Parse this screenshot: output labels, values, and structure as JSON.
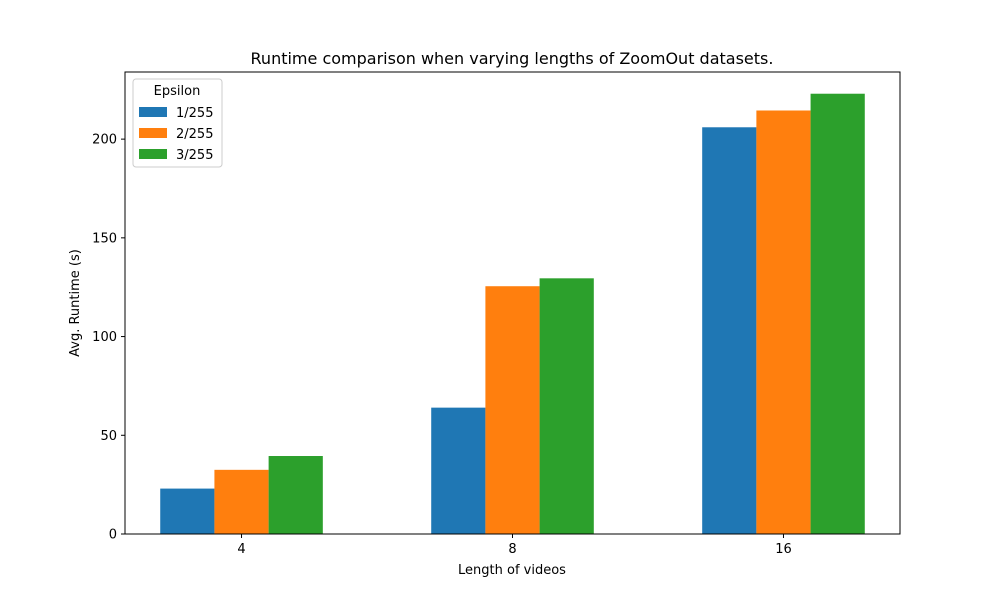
{
  "chart_data": {
    "type": "bar",
    "title": "Runtime comparison when varying lengths of ZoomOut datasets.",
    "xlabel": "Length of videos",
    "ylabel": "Avg. Runtime (s)",
    "categories": [
      "4",
      "8",
      "16"
    ],
    "ylim": [
      0,
      234
    ],
    "yticks": [
      0,
      50,
      100,
      150,
      200
    ],
    "grid": false,
    "legend": {
      "title": "Epsilon",
      "placement": "top-left"
    },
    "series": [
      {
        "name": "1/255",
        "color": "#1f77b4",
        "values": [
          23,
          64,
          206
        ]
      },
      {
        "name": "2/255",
        "color": "#ff7f0e",
        "values": [
          32.5,
          125.5,
          214.5
        ]
      },
      {
        "name": "3/255",
        "color": "#2ca02c",
        "values": [
          39.5,
          129.5,
          223
        ]
      }
    ]
  }
}
